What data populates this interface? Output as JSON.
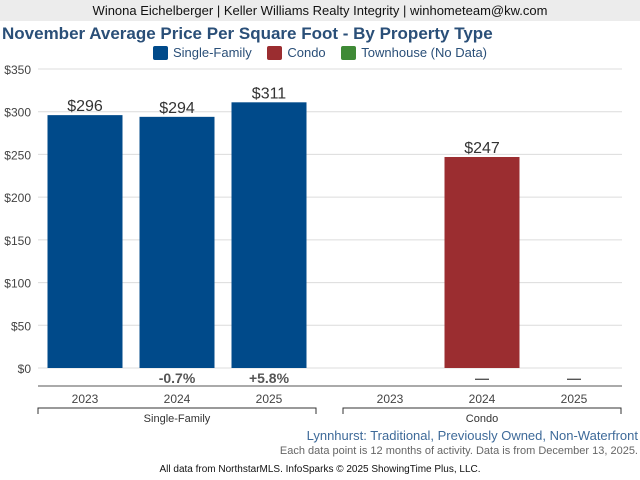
{
  "header": "Winona Eichelberger | Keller Williams Realty Integrity | winhometeam@kw.com",
  "chart_data": {
    "type": "bar",
    "title": "November Average Price Per Square Foot - By Property Type",
    "legend": [
      {
        "name": "Single-Family",
        "color": "#004a8a"
      },
      {
        "name": "Condo",
        "color": "#9b2d30"
      },
      {
        "name": "Townhouse (No Data)",
        "color": "#3f8a36"
      }
    ],
    "ylim": [
      0,
      350
    ],
    "yticks": [
      "$0",
      "$50",
      "$100",
      "$150",
      "$200",
      "$250",
      "$300",
      "$350"
    ],
    "groups": [
      {
        "name": "Single-Family",
        "color": "#004a8a",
        "categories": [
          "2023",
          "2024",
          "2025"
        ],
        "values": [
          296,
          294,
          311
        ],
        "labels": [
          "$296",
          "$294",
          "$311"
        ],
        "changes": [
          "",
          "-0.7%",
          "+5.8%"
        ]
      },
      {
        "name": "Condo",
        "color": "#9b2d30",
        "categories": [
          "2023",
          "2024",
          "2025"
        ],
        "values": [
          null,
          247,
          null
        ],
        "labels": [
          "",
          "$247",
          ""
        ],
        "changes": [
          "",
          "—",
          "—"
        ]
      }
    ]
  },
  "subtitle": "Lynnhurst: Traditional, Previously Owned, Non-Waterfront",
  "note": "Each data point is 12 months of activity. Data is from December 13, 2025.",
  "footer": "All data from NorthstarMLS. InfoSparks © 2025 ShowingTime Plus, LLC."
}
